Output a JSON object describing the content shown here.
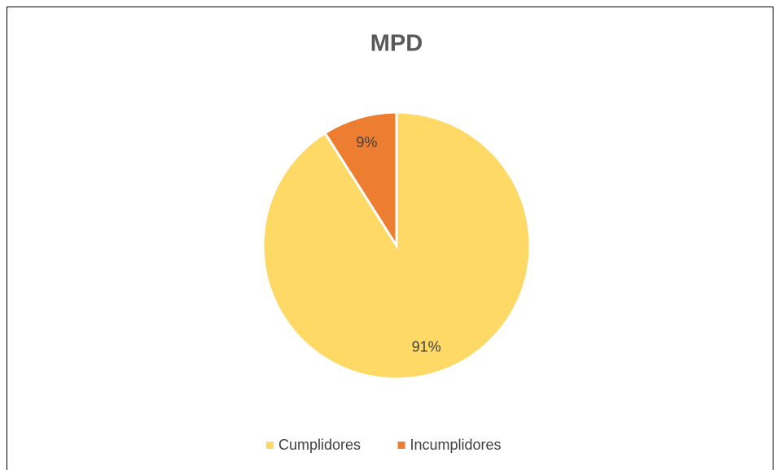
{
  "chart_data": {
    "type": "pie",
    "title": "MPD",
    "categories": [
      "Cumplidores",
      "Incumplidores"
    ],
    "values": [
      91,
      9
    ],
    "value_labels": [
      "91%",
      "9%"
    ],
    "colors": [
      "#FFD966",
      "#ED7D31"
    ],
    "legend": "bottom"
  }
}
